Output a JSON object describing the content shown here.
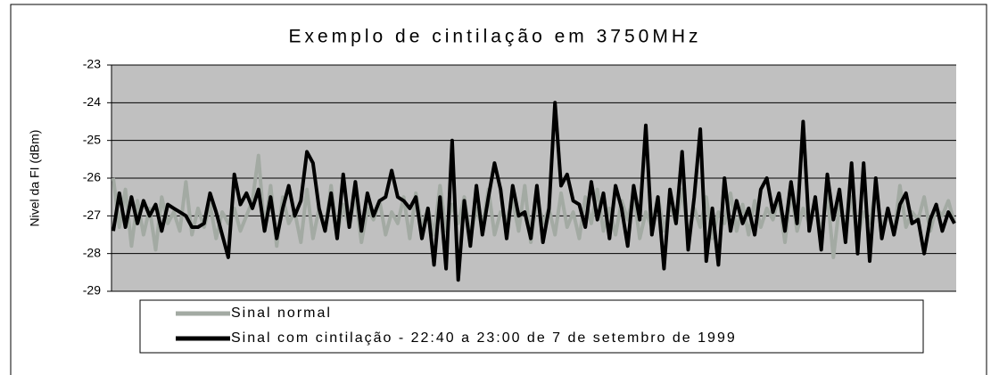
{
  "chart_data": {
    "type": "line",
    "title": "Exemplo de cintilação em 3750MHz",
    "y_label": "Nivel da FI (dBm)",
    "ylim": [
      -29,
      -23
    ],
    "yticks": [
      -29,
      -28,
      -27,
      -26,
      -25,
      -24,
      -23
    ],
    "grid": true,
    "series": [
      {
        "name": "Sinal normal",
        "color": "#a3aaa3",
        "values": [
          -26.0,
          -27.3,
          -26.3,
          -27.8,
          -26.6,
          -27.5,
          -26.8,
          -27.9,
          -26.5,
          -27.2,
          -26.9,
          -27.4,
          -26.1,
          -27.5,
          -26.8,
          -27.3,
          -26.7,
          -27.6,
          -26.9,
          -27.2,
          -26.8,
          -27.4,
          -27.0,
          -26.6,
          -25.4,
          -27.4,
          -26.2,
          -27.8,
          -26.5,
          -27.2,
          -26.9,
          -27.7,
          -26.3,
          -27.6,
          -26.8,
          -27.4,
          -26.2,
          -27.5,
          -26.7,
          -27.3,
          -26.4,
          -27.7,
          -26.8,
          -27.1,
          -26.6,
          -27.5,
          -26.9,
          -27.2,
          -26.5,
          -27.6,
          -26.4,
          -27.3,
          -26.8,
          -27.5,
          -26.2,
          -27.4,
          -26.7,
          -27.2,
          -26.5,
          -27.6,
          -26.8,
          -27.3,
          -26.3,
          -27.5,
          -26.9,
          -27.1,
          -26.6,
          -27.4,
          -26.2,
          -27.7,
          -26.5,
          -27.2,
          -26.8,
          -27.5,
          -26.4,
          -27.3,
          -26.9,
          -27.6,
          -26.5,
          -27.2,
          -26.3,
          -27.4,
          -26.8,
          -27.5,
          -26.6,
          -27.1,
          -26.4,
          -27.6,
          -26.9,
          -27.3,
          -26.5,
          -27.4,
          -26.7,
          -27.2,
          -26.3,
          -27.5,
          -26.8,
          -27.3,
          -26.5,
          -27.6,
          -26.9,
          -27.2,
          -26.4,
          -27.4,
          -26.7,
          -27.5,
          -26.6,
          -27.3,
          -26.8,
          -27.1,
          -26.5,
          -27.7,
          -26.3,
          -27.4,
          -26.8,
          -27.2,
          -26.6,
          -27.5,
          -26.4,
          -28.1,
          -26.7,
          -27.3,
          -26.5,
          -27.6,
          -26.9,
          -27.2,
          -26.3,
          -27.4,
          -26.8,
          -27.5,
          -26.2,
          -27.3,
          -26.9,
          -27.1,
          -26.5,
          -27.4,
          -26.8,
          -27.0,
          -26.6,
          -27.2
        ]
      },
      {
        "name": "Sinal com cintilação - 22:40 a 23:00 de 7 de setembro de 1999",
        "color": "#000000",
        "values": [
          -27.4,
          -26.4,
          -27.3,
          -26.5,
          -27.2,
          -26.6,
          -27.0,
          -26.7,
          -27.4,
          -26.7,
          -26.8,
          -26.9,
          -27.0,
          -27.3,
          -27.3,
          -27.2,
          -26.4,
          -26.9,
          -27.5,
          -28.1,
          -25.9,
          -26.7,
          -26.4,
          -26.8,
          -26.3,
          -27.4,
          -26.5,
          -27.6,
          -26.8,
          -26.2,
          -27.0,
          -26.6,
          -25.3,
          -25.6,
          -26.8,
          -27.4,
          -26.4,
          -27.6,
          -25.9,
          -27.3,
          -26.1,
          -27.4,
          -26.4,
          -27.0,
          -26.6,
          -26.5,
          -25.8,
          -26.5,
          -26.6,
          -26.8,
          -26.5,
          -27.6,
          -26.8,
          -28.3,
          -26.5,
          -28.4,
          -25.0,
          -28.7,
          -26.6,
          -27.8,
          -26.2,
          -27.5,
          -26.5,
          -25.6,
          -26.3,
          -27.6,
          -26.2,
          -27.0,
          -26.9,
          -27.6,
          -26.2,
          -27.7,
          -26.8,
          -24.0,
          -26.2,
          -25.9,
          -26.6,
          -26.7,
          -27.3,
          -26.1,
          -27.1,
          -26.4,
          -27.6,
          -26.2,
          -26.8,
          -27.8,
          -26.2,
          -27.1,
          -24.6,
          -27.5,
          -26.5,
          -28.4,
          -26.3,
          -27.2,
          -25.3,
          -27.9,
          -26.5,
          -24.7,
          -28.2,
          -26.8,
          -28.3,
          -26.0,
          -27.4,
          -26.6,
          -27.2,
          -26.8,
          -27.5,
          -26.3,
          -26.0,
          -26.9,
          -26.4,
          -27.4,
          -26.1,
          -27.2,
          -24.5,
          -27.4,
          -26.5,
          -27.9,
          -25.9,
          -27.1,
          -26.3,
          -27.7,
          -25.6,
          -28.0,
          -25.6,
          -28.2,
          -26.0,
          -27.6,
          -26.8,
          -27.5,
          -26.7,
          -26.4,
          -27.2,
          -27.1,
          -28.0,
          -27.1,
          -26.7,
          -27.4,
          -26.9,
          -27.2
        ]
      }
    ]
  }
}
